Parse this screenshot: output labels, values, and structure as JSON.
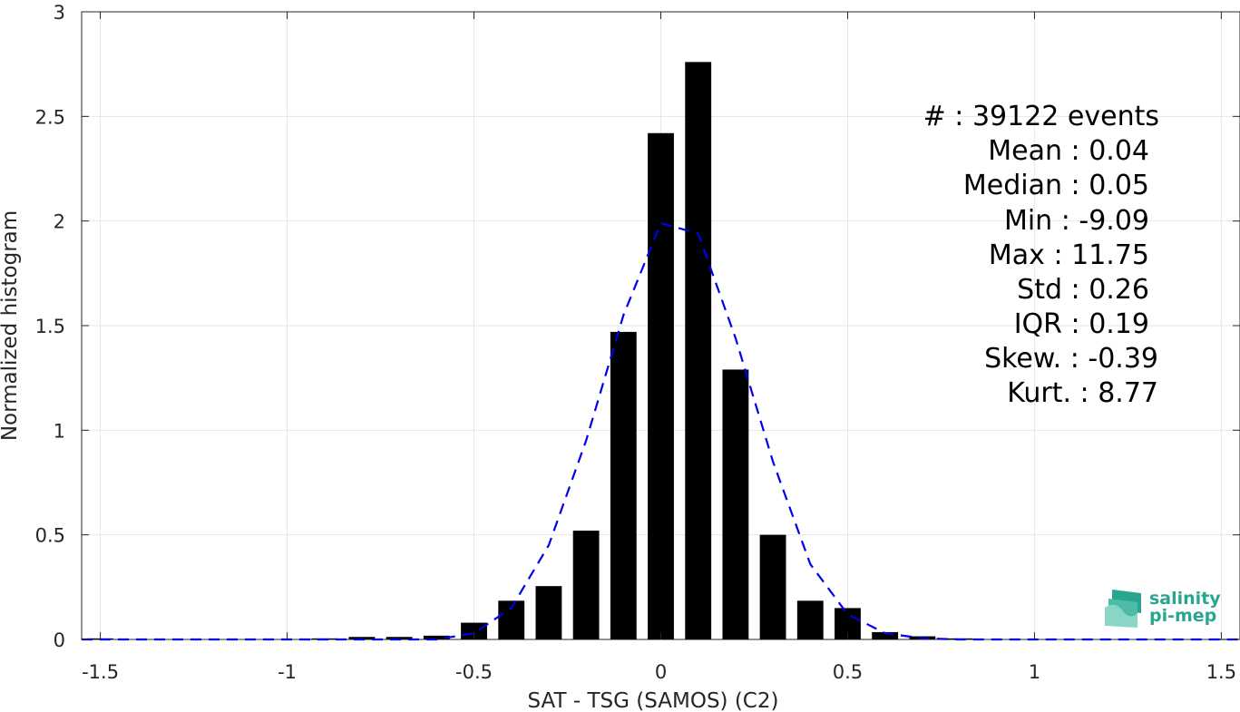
{
  "chart_data": {
    "type": "bar",
    "xlabel": "SAT - TSG (SAMOS) (C2)",
    "ylabel": "Normalized histogram",
    "xlim": [
      -1.55,
      1.55
    ],
    "ylim": [
      0,
      3
    ],
    "grid": true,
    "xticks": [
      -1.5,
      -1,
      -0.5,
      0,
      0.5,
      1,
      1.5
    ],
    "xtick_labels": [
      "-1.5",
      "-1",
      "-0.5",
      "0",
      "0.5",
      "1",
      "1.5"
    ],
    "yticks": [
      0,
      0.5,
      1,
      1.5,
      2,
      2.5,
      3
    ],
    "ytick_labels": [
      "0",
      "0.5",
      "1",
      "1.5",
      "2",
      "2.5",
      "3"
    ],
    "bar_width": 0.07,
    "bars": [
      {
        "x": -1.5,
        "y": 0.005
      },
      {
        "x": -0.9,
        "y": 0.005
      },
      {
        "x": -0.8,
        "y": 0.012
      },
      {
        "x": -0.7,
        "y": 0.012
      },
      {
        "x": -0.6,
        "y": 0.018
      },
      {
        "x": -0.5,
        "y": 0.08
      },
      {
        "x": -0.4,
        "y": 0.185
      },
      {
        "x": -0.3,
        "y": 0.255
      },
      {
        "x": -0.2,
        "y": 0.52
      },
      {
        "x": -0.1,
        "y": 1.47
      },
      {
        "x": 0.0,
        "y": 2.42
      },
      {
        "x": 0.1,
        "y": 2.76
      },
      {
        "x": 0.2,
        "y": 1.29
      },
      {
        "x": 0.3,
        "y": 0.5
      },
      {
        "x": 0.4,
        "y": 0.185
      },
      {
        "x": 0.5,
        "y": 0.15
      },
      {
        "x": 0.6,
        "y": 0.035
      },
      {
        "x": 0.7,
        "y": 0.015
      },
      {
        "x": 0.8,
        "y": 0.005
      },
      {
        "x": 1.5,
        "y": 0.002
      }
    ],
    "fit_curve": {
      "color": "#0000ee",
      "style": "dashed",
      "points": [
        [
          -1.55,
          0.0
        ],
        [
          -0.6,
          0.0
        ],
        [
          -0.5,
          0.03
        ],
        [
          -0.4,
          0.15
        ],
        [
          -0.3,
          0.45
        ],
        [
          -0.2,
          0.95
        ],
        [
          -0.1,
          1.55
        ],
        [
          0.0,
          1.99
        ],
        [
          0.1,
          1.94
        ],
        [
          0.2,
          1.44
        ],
        [
          0.3,
          0.85
        ],
        [
          0.4,
          0.36
        ],
        [
          0.5,
          0.12
        ],
        [
          0.6,
          0.03
        ],
        [
          0.7,
          0.005
        ],
        [
          0.8,
          0.0
        ],
        [
          1.55,
          0.0
        ]
      ]
    },
    "bar_color": "#000000"
  },
  "stats": {
    "lines": [
      "#  : 39122 events",
      "Mean : 0.04",
      "Median : 0.05",
      "Min : -9.09",
      "Max : 11.75",
      "Std : 0.26",
      "IQR : 0.19",
      "Skew. : -0.39",
      "Kurt. : 8.77"
    ]
  },
  "logo": {
    "line1": "salinity",
    "line2": "pi-mep",
    "color": "#2aa58f"
  }
}
